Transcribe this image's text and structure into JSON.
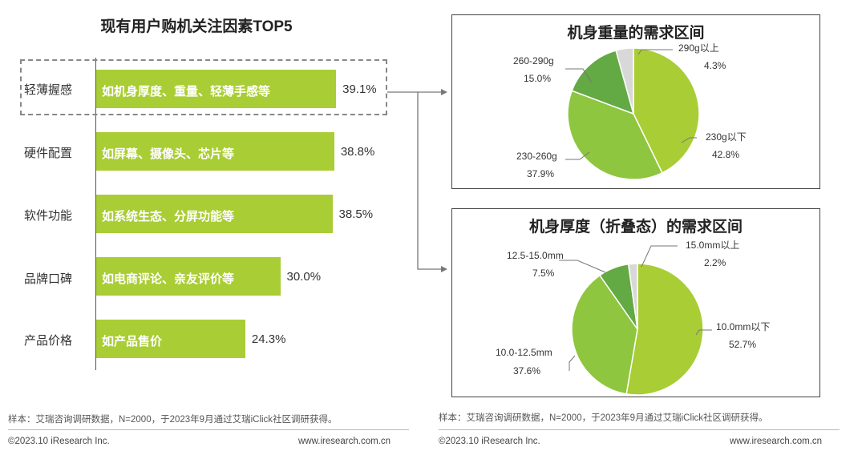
{
  "left": {
    "title": "现有用户购机关注因素TOP5",
    "bars": [
      {
        "category": "轻薄握感",
        "desc": "如机身厚度、重量、轻薄手感等",
        "value": 39.1,
        "label": "39.1%"
      },
      {
        "category": "硬件配置",
        "desc": "如屏幕、摄像头、芯片等",
        "value": 38.8,
        "label": "38.8%"
      },
      {
        "category": "软件功能",
        "desc": "如系统生态、分屏功能等",
        "value": 38.5,
        "label": "38.5%"
      },
      {
        "category": "品牌口碑",
        "desc": "如电商评论、亲友评价等",
        "value": 30.0,
        "label": "30.0%"
      },
      {
        "category": "产品价格",
        "desc": "如产品售价",
        "value": 24.3,
        "label": "24.3%"
      }
    ],
    "note": "样本：艾瑞咨询调研数据，N=2000，于2023年9月通过艾瑞iClick社区调研获得。",
    "copyright": "©2023.10 iResearch Inc.",
    "website": "www.iresearch.com.cn"
  },
  "weight": {
    "title": "机身重量的需求区间",
    "slices": [
      {
        "name": "230g以下",
        "value": 42.8,
        "label": "42.8%",
        "color": "#a9cd34"
      },
      {
        "name": "230-260g",
        "value": 37.9,
        "label": "37.9%",
        "color": "#8ec63f"
      },
      {
        "name": "260-290g",
        "value": 15.0,
        "label": "15.0%",
        "color": "#63a944"
      },
      {
        "name": "290g以上",
        "value": 4.3,
        "label": "4.3%",
        "color": "#d8d8d8"
      }
    ]
  },
  "thickness": {
    "title": "机身厚度（折叠态）的需求区间",
    "slices": [
      {
        "name": "10.0mm以下",
        "value": 52.7,
        "label": "52.7%",
        "color": "#a9cd34"
      },
      {
        "name": "10.0-12.5mm",
        "value": 37.6,
        "label": "37.6%",
        "color": "#8ec63f"
      },
      {
        "name": "12.5-15.0mm",
        "value": 7.5,
        "label": "7.5%",
        "color": "#63a944"
      },
      {
        "name": "15.0mm以上",
        "value": 2.2,
        "label": "2.2%",
        "color": "#d8d8d8"
      }
    ],
    "note": "样本：艾瑞咨询调研数据，N=2000，于2023年9月通过艾瑞iClick社区调研获得。",
    "copyright": "©2023.10 iResearch Inc.",
    "website": "www.iresearch.com.cn"
  },
  "chart_data": [
    {
      "type": "bar",
      "title": "现有用户购机关注因素TOP5",
      "categories": [
        "轻薄握感",
        "硬件配置",
        "软件功能",
        "品牌口碑",
        "产品价格"
      ],
      "values": [
        39.1,
        38.8,
        38.5,
        30.0,
        24.3
      ],
      "annotations": [
        "如机身厚度、重量、轻薄手感等",
        "如屏幕、摄像头、芯片等",
        "如系统生态、分屏功能等",
        "如电商评论、亲友评价等",
        "如产品售价"
      ],
      "orientation": "horizontal",
      "unit": "%"
    },
    {
      "type": "pie",
      "title": "机身重量的需求区间",
      "categories": [
        "230g以下",
        "230-260g",
        "260-290g",
        "290g以上"
      ],
      "values": [
        42.8,
        37.9,
        15.0,
        4.3
      ],
      "unit": "%"
    },
    {
      "type": "pie",
      "title": "机身厚度（折叠态）的需求区间",
      "categories": [
        "10.0mm以下",
        "10.0-12.5mm",
        "12.5-15.0mm",
        "15.0mm以上"
      ],
      "values": [
        52.7,
        37.6,
        7.5,
        2.2
      ],
      "unit": "%"
    }
  ]
}
